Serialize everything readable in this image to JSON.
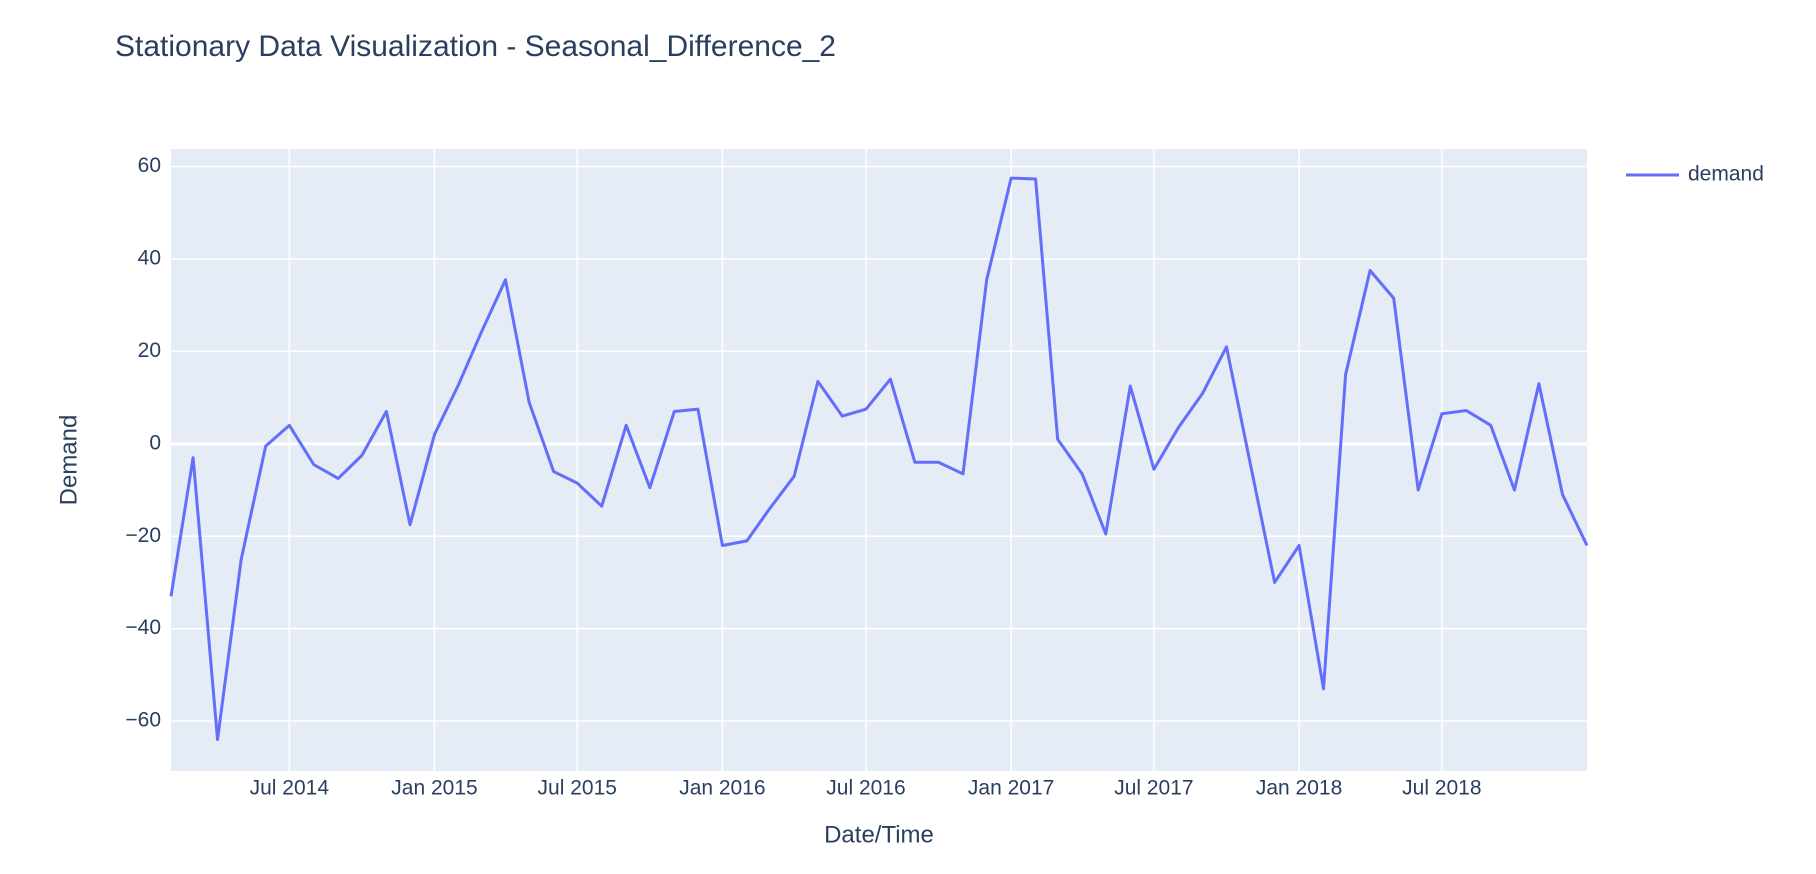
{
  "chart_data": {
    "type": "line",
    "title": "Stationary Data Visualization - Seasonal_Difference_2",
    "x_label": "Date/Time",
    "y_label": "Demand",
    "x": [
      "2014-02",
      "2014-03",
      "2014-04",
      "2014-05",
      "2014-06",
      "2014-07",
      "2014-08",
      "2014-09",
      "2014-10",
      "2014-11",
      "2014-12",
      "2015-01",
      "2015-02",
      "2015-03",
      "2015-04",
      "2015-05",
      "2015-06",
      "2015-07",
      "2015-08",
      "2015-09",
      "2015-10",
      "2015-11",
      "2015-12",
      "2016-01",
      "2016-02",
      "2016-03",
      "2016-04",
      "2016-05",
      "2016-06",
      "2016-07",
      "2016-08",
      "2016-09",
      "2016-10",
      "2016-11",
      "2016-12",
      "2017-01",
      "2017-02",
      "2017-03",
      "2017-04",
      "2017-05",
      "2017-06",
      "2017-07",
      "2017-08",
      "2017-09",
      "2017-10",
      "2017-11",
      "2017-12",
      "2018-01",
      "2018-02",
      "2018-03",
      "2018-04",
      "2018-05",
      "2018-06",
      "2018-07",
      "2018-08",
      "2018-09",
      "2018-10",
      "2018-11",
      "2018-12",
      "2019-01"
    ],
    "series": [
      {
        "name": "demand",
        "color": "#636efa",
        "values": [
          -33,
          -3,
          -64,
          -25,
          -0.5,
          4,
          -4.5,
          -7.5,
          -2.5,
          7,
          -17.5,
          2,
          13,
          24,
          35.5,
          9,
          -6,
          -8.5,
          -13.5,
          4,
          -9.5,
          7,
          7.5,
          -22,
          -21,
          -14,
          -7,
          13.5,
          6,
          7.5,
          14,
          -4,
          -4,
          -6.5,
          35.5,
          57.5,
          57.3,
          1,
          -6.5,
          -19.5,
          12.5,
          -5.5,
          3.5,
          11,
          21,
          -5,
          -30,
          -22,
          -53,
          15,
          37.5,
          31.5,
          -10,
          6.5,
          7.2,
          4,
          -10,
          13,
          -11,
          -22
        ]
      }
    ],
    "xlim": [
      "2014-02",
      "2019-01"
    ],
    "xticks": [
      {
        "value": "2014-07",
        "label": "Jul 2014"
      },
      {
        "value": "2015-01",
        "label": "Jan 2015"
      },
      {
        "value": "2015-07",
        "label": "Jul 2015"
      },
      {
        "value": "2016-01",
        "label": "Jan 2016"
      },
      {
        "value": "2016-07",
        "label": "Jul 2016"
      },
      {
        "value": "2017-01",
        "label": "Jan 2017"
      },
      {
        "value": "2017-07",
        "label": "Jul 2017"
      },
      {
        "value": "2018-01",
        "label": "Jan 2018"
      },
      {
        "value": "2018-07",
        "label": "Jul 2018"
      }
    ],
    "ylim": [
      -70.8,
      63.8
    ],
    "yticks": [
      {
        "value": -60,
        "label": "−60"
      },
      {
        "value": -40,
        "label": "−40"
      },
      {
        "value": -20,
        "label": "−20"
      },
      0,
      20,
      40,
      60
    ],
    "grid": true,
    "legend": "right"
  }
}
